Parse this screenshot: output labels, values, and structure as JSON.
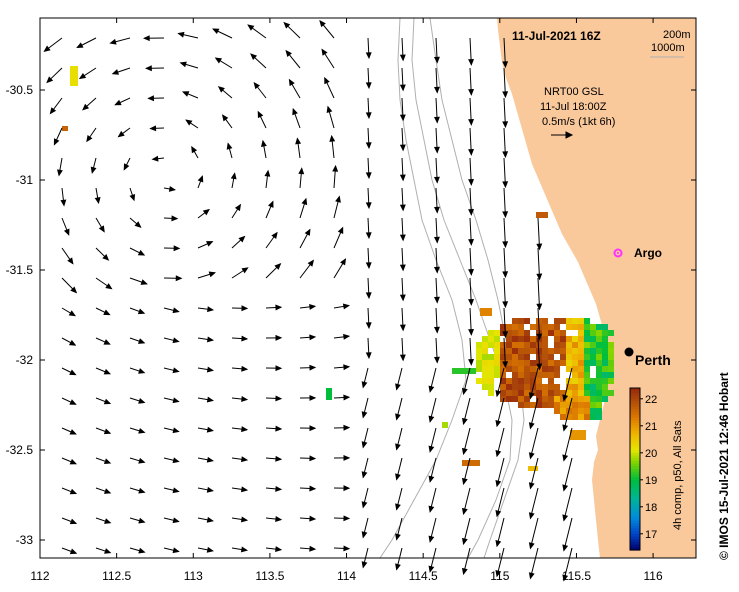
{
  "map": {
    "date_title": "11-Jul-2021 16Z",
    "depth_legend": [
      "200m",
      "1000m"
    ],
    "current_label": {
      "source": "NRT00 GSL",
      "time": "11-Jul 18:00Z",
      "scale": "0.5m/s (1kt 6h)"
    },
    "places": [
      {
        "name": "Argo",
        "lon": 115.84,
        "lat": -31.45
      },
      {
        "name": "Perth",
        "lon": 115.86,
        "lat": -31.95
      }
    ],
    "credit": "© IMOS 15-Jul-2021 12:46 Hobart",
    "colorbar": {
      "label": "4h comp, p50, All Sats",
      "ticks": [
        "22",
        "21",
        "20",
        "19",
        "18",
        "17"
      ],
      "tick_values": [
        22,
        21,
        20,
        19,
        18,
        17
      ],
      "min": 16.4,
      "max": 22.4
    },
    "axes": {
      "x_ticks": [
        "112",
        "112.5",
        "113",
        "113.5",
        "114",
        "114.5",
        "115",
        "115.5",
        "116"
      ],
      "x_values": [
        112,
        112.5,
        113,
        113.5,
        114,
        114.5,
        115,
        115.5,
        116
      ],
      "y_ticks": [
        "-30.5",
        "-31",
        "-31.5",
        "-32",
        "-32.5",
        "-33"
      ],
      "y_values": [
        -30.5,
        -31,
        -31.5,
        -32,
        -32.5,
        -33
      ],
      "lon_range": [
        112,
        116.28
      ],
      "lat_range": [
        -33.1,
        -30.1
      ]
    },
    "colors": {
      "land": "#f9c89b",
      "sea": "#ffffff",
      "isobath": "#b0b0b0",
      "argo": "#ff33ff",
      "arrow": "#000000"
    }
  }
}
